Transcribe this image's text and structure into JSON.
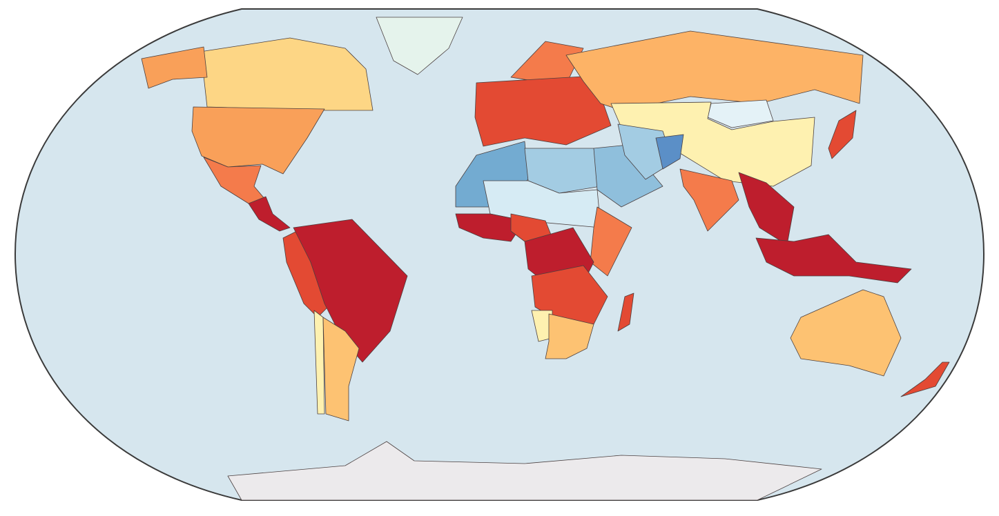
{
  "map": {
    "ocean": "#d6e6ee",
    "frame": "#3a3a3a",
    "border": "#4a3f3f",
    "colors": {
      "canada": "#fdd685",
      "greenland": "#e5f3ec",
      "usa": "#f9a059",
      "mexico": "#f47b4b",
      "central": "#be1e2d",
      "brazil": "#be1e2d",
      "andes": "#e34a33",
      "cone": "#fdc272",
      "chile": "#fef1b0",
      "europe": "#e34a33",
      "nordic": "#f47b4b",
      "russia": "#fdb366",
      "china": "#fef1b0",
      "mongolia": "#e4f2f7",
      "maghreb": "#73abd1",
      "libya": "#a3cce3",
      "sahel": "#d6ebf4",
      "arabia": "#8fbfdc",
      "iran": "#a3cce3",
      "afghan": "#5b8fc7",
      "westafrica": "#be1e2d",
      "nigeria": "#e34a33",
      "horn": "#f47b4b",
      "congo": "#be1e2d",
      "eastafrica": "#e34a33",
      "southafrica": "#fdc272",
      "namibia": "#fef1b0",
      "madagascar": "#e34a33",
      "india": "#f47b4b",
      "seasia": "#be1e2d",
      "indonesia": "#be1e2d",
      "australia": "#fdc272",
      "antarctica": "#eceaec",
      "japan": "#e34a33",
      "newzealand": "#e34a33"
    }
  }
}
